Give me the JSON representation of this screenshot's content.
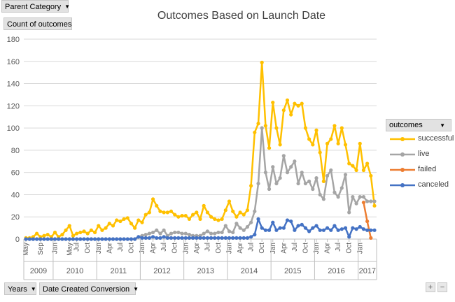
{
  "filters": {
    "parent_category": "Parent Category",
    "years": "Years",
    "date_created": "Date Created Conversion"
  },
  "field_button": {
    "value_field": "Count of outcomes"
  },
  "legend": {
    "header": "outcomes"
  },
  "zoom": {
    "plus": "+",
    "minus": "−"
  },
  "colors": {
    "successful": "#FFC000",
    "live": "#A5A5A5",
    "failed": "#ED7D31",
    "canceled": "#4472C4"
  },
  "chart_data": {
    "type": "line",
    "title": "Outcomes Based on Launch Date",
    "ylim": [
      0,
      180
    ],
    "yticks": [
      0,
      20,
      40,
      60,
      80,
      100,
      120,
      140,
      160,
      180
    ],
    "grid": true,
    "legend_position": "right",
    "x_start": "2009-05",
    "x_end": "2017-03",
    "month_tick_labels": [
      "May",
      "Sep",
      "Jan",
      "May",
      "Jul",
      "Oct",
      "Jan",
      "Apr",
      "Jul",
      "Oct",
      "Jan",
      "Apr",
      "Jul",
      "Oct",
      "Jan",
      "Apr",
      "Jul",
      "Oct",
      "Jan",
      "Apr",
      "Jul",
      "Oct",
      "Jan",
      "Apr",
      "Jul",
      "Oct",
      "Jan",
      "Apr",
      "Jul",
      "Oct",
      "Jan"
    ],
    "year_labels": [
      "2009",
      "2010",
      "2011",
      "2012",
      "2013",
      "2014",
      "2015",
      "2016",
      "2017"
    ],
    "series": [
      {
        "name": "successful",
        "values": [
          1,
          1,
          2,
          5,
          2,
          3,
          4,
          2,
          6,
          2,
          4,
          8,
          12,
          3,
          5,
          6,
          7,
          5,
          8,
          6,
          12,
          8,
          10,
          14,
          12,
          17,
          16,
          18,
          19,
          14,
          10,
          17,
          15,
          22,
          24,
          36,
          30,
          25,
          24,
          24,
          25,
          22,
          20,
          21,
          21,
          18,
          22,
          24,
          18,
          30,
          24,
          20,
          18,
          17,
          18,
          26,
          34,
          25,
          20,
          24,
          22,
          26,
          48,
          96,
          104,
          159,
          102,
          82,
          123,
          100,
          85,
          116,
          125,
          112,
          122,
          120,
          122,
          100,
          90,
          85,
          98,
          78,
          52,
          86,
          90,
          102,
          86,
          100,
          85,
          68,
          66,
          62,
          86,
          62,
          68,
          57,
          30
        ]
      },
      {
        "name": "live",
        "values": [
          0,
          0,
          0,
          0,
          0,
          0,
          0,
          0,
          0,
          0,
          0,
          0,
          0,
          0,
          0,
          0,
          0,
          0,
          0,
          0,
          0,
          0,
          0,
          0,
          0,
          0,
          0,
          0,
          0,
          0,
          0,
          2,
          3,
          4,
          5,
          6,
          8,
          5,
          8,
          3,
          5,
          6,
          6,
          5,
          5,
          4,
          3,
          3,
          3,
          5,
          7,
          5,
          5,
          6,
          6,
          12,
          7,
          6,
          14,
          10,
          8,
          11,
          15,
          25,
          50,
          100,
          60,
          45,
          65,
          50,
          55,
          75,
          60,
          65,
          70,
          50,
          60,
          50,
          52,
          45,
          55,
          40,
          36,
          57,
          62,
          42,
          38,
          46,
          58,
          24,
          38,
          32,
          38,
          38,
          34,
          34,
          34
        ]
      },
      {
        "name": "failed",
        "values": [
          null,
          null,
          null,
          null,
          null,
          null,
          null,
          null,
          null,
          null,
          null,
          null,
          null,
          null,
          null,
          null,
          null,
          null,
          null,
          null,
          null,
          null,
          null,
          null,
          null,
          null,
          null,
          null,
          null,
          null,
          null,
          null,
          null,
          null,
          null,
          null,
          null,
          null,
          null,
          null,
          null,
          null,
          null,
          null,
          null,
          null,
          null,
          null,
          null,
          null,
          null,
          null,
          null,
          null,
          null,
          null,
          null,
          null,
          null,
          null,
          null,
          null,
          null,
          null,
          null,
          null,
          null,
          null,
          null,
          null,
          null,
          null,
          null,
          null,
          null,
          null,
          null,
          null,
          null,
          null,
          null,
          null,
          null,
          null,
          null,
          null,
          null,
          null,
          null,
          null,
          null,
          null,
          null,
          33,
          16,
          1,
          null
        ]
      },
      {
        "name": "canceled",
        "values": [
          0,
          0,
          0,
          0,
          0,
          0,
          0,
          0,
          0,
          0,
          0,
          0,
          0,
          0,
          0,
          0,
          0,
          0,
          0,
          0,
          0,
          0,
          0,
          0,
          0,
          0,
          0,
          0,
          0,
          0,
          0,
          2,
          1,
          1,
          1,
          2,
          1,
          1,
          2,
          1,
          1,
          1,
          1,
          1,
          1,
          1,
          1,
          1,
          1,
          1,
          1,
          1,
          1,
          1,
          1,
          1,
          1,
          1,
          1,
          1,
          1,
          1,
          2,
          4,
          18,
          10,
          8,
          8,
          15,
          8,
          10,
          10,
          17,
          16,
          8,
          12,
          13,
          10,
          7,
          10,
          12,
          8,
          8,
          10,
          8,
          12,
          8,
          9,
          10,
          2,
          10,
          9,
          11,
          9,
          8,
          8,
          8
        ]
      }
    ]
  }
}
